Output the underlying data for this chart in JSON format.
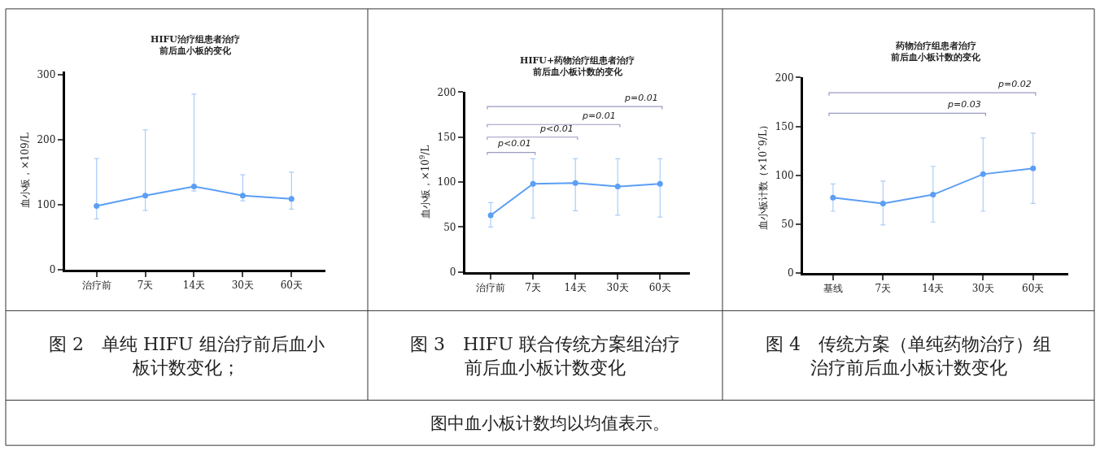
{
  "chart_data": [
    {
      "type": "line",
      "title": "HIFU治疗组患者治疗前后血小板的变化",
      "ylabel": "血小板，×109/L",
      "categories": [
        "治疗前",
        "7天",
        "14天",
        "30天",
        "60天"
      ],
      "values": [
        98,
        114,
        128,
        114,
        109
      ],
      "color": "#5b9ef5",
      "marker": "circle",
      "errors": [
        [
          78,
          171
        ],
        [
          91,
          215
        ],
        [
          121,
          270
        ],
        [
          106,
          146
        ],
        [
          93,
          150
        ]
      ],
      "ylim": [
        0,
        305
      ],
      "yticks": [
        0,
        100,
        200,
        300
      ],
      "annotations": [
        "图 2　单纯 HIFU 组治疗前后血小板计数变化；"
      ]
    },
    {
      "type": "line",
      "title": "HIFU+药物治疗组患者治疗前后血小板计数的变化",
      "ylabel": "血小板，×10$^{9}$/L",
      "categories": [
        "治疗前",
        "7天",
        "14天",
        "30天",
        "60天"
      ],
      "values": [
        63,
        98,
        99,
        95,
        98
      ],
      "color": "#5b9ef5",
      "marker": "circle",
      "errors": [
        [
          50,
          77
        ],
        [
          60,
          126
        ],
        [
          68,
          126
        ],
        [
          63,
          126
        ],
        [
          61,
          126
        ]
      ],
      "ylim": [
        0,
        200
      ],
      "yticks": [
        0,
        50,
        100,
        150,
        200
      ],
      "annotations": [
        "图 3　HIFU 联合传统方案组治疗前后血小板计数变化",
        "p<0.01",
        "p<0.01",
        "p=0.01",
        "p=0.01"
      ]
    },
    {
      "type": "line",
      "title": "药物治疗组患者治疗前后血小板计数的变化",
      "ylabel": "血小板计数（×10ˆ9/L）",
      "categories": [
        "基线",
        "7天",
        "14天",
        "30天",
        "60天"
      ],
      "values": [
        77,
        71,
        80,
        101,
        107
      ],
      "color": "#5b9ef5",
      "marker": "circle",
      "errors": [
        [
          63,
          91
        ],
        [
          49,
          94
        ],
        [
          52,
          109
        ],
        [
          63,
          138
        ],
        [
          71,
          143
        ]
      ],
      "ylim": [
        0,
        200
      ],
      "yticks": [
        0,
        50,
        100,
        150,
        200
      ],
      "annotations": [
        "图 4　传统方案（单纯药物治疗）组治疗前后血小板计数变化",
        "p=0.03",
        "p=0.02",
        "图中血小板计数均以均值表示。"
      ]
    }
  ]
}
